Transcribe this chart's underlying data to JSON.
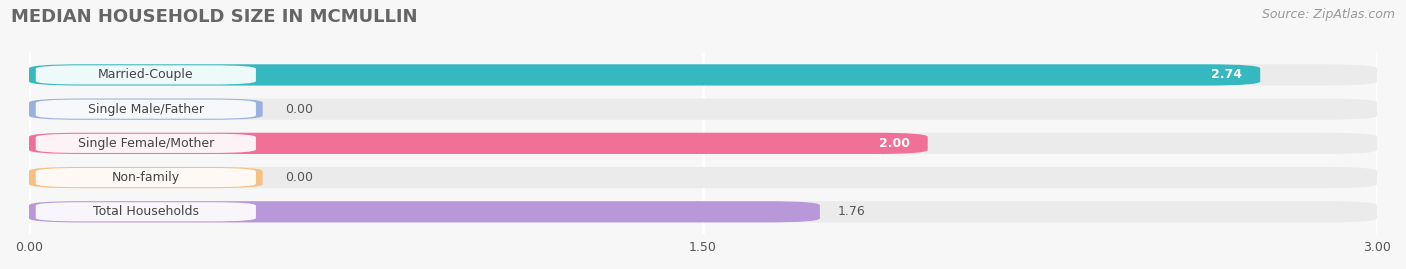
{
  "title": "MEDIAN HOUSEHOLD SIZE IN MCMULLIN",
  "source": "Source: ZipAtlas.com",
  "categories": [
    "Married-Couple",
    "Single Male/Father",
    "Single Female/Mother",
    "Non-family",
    "Total Households"
  ],
  "values": [
    2.74,
    0.0,
    2.0,
    0.0,
    1.76
  ],
  "bar_colors": [
    "#35b8c0",
    "#9ab0de",
    "#f07098",
    "#f5c080",
    "#b898d8"
  ],
  "bar_bg_colors": [
    "#ebebeb",
    "#ebebeb",
    "#ebebeb",
    "#ebebeb",
    "#ebebeb"
  ],
  "xlim": [
    0,
    3.0
  ],
  "xticks": [
    0.0,
    1.5,
    3.0
  ],
  "xtick_labels": [
    "0.00",
    "1.50",
    "3.00"
  ],
  "value_labels": [
    "2.74",
    "0.00",
    "2.00",
    "0.00",
    "1.76"
  ],
  "background_color": "#f7f7f7",
  "title_fontsize": 13,
  "source_fontsize": 9,
  "bar_label_fontsize": 9,
  "value_fontsize": 9
}
